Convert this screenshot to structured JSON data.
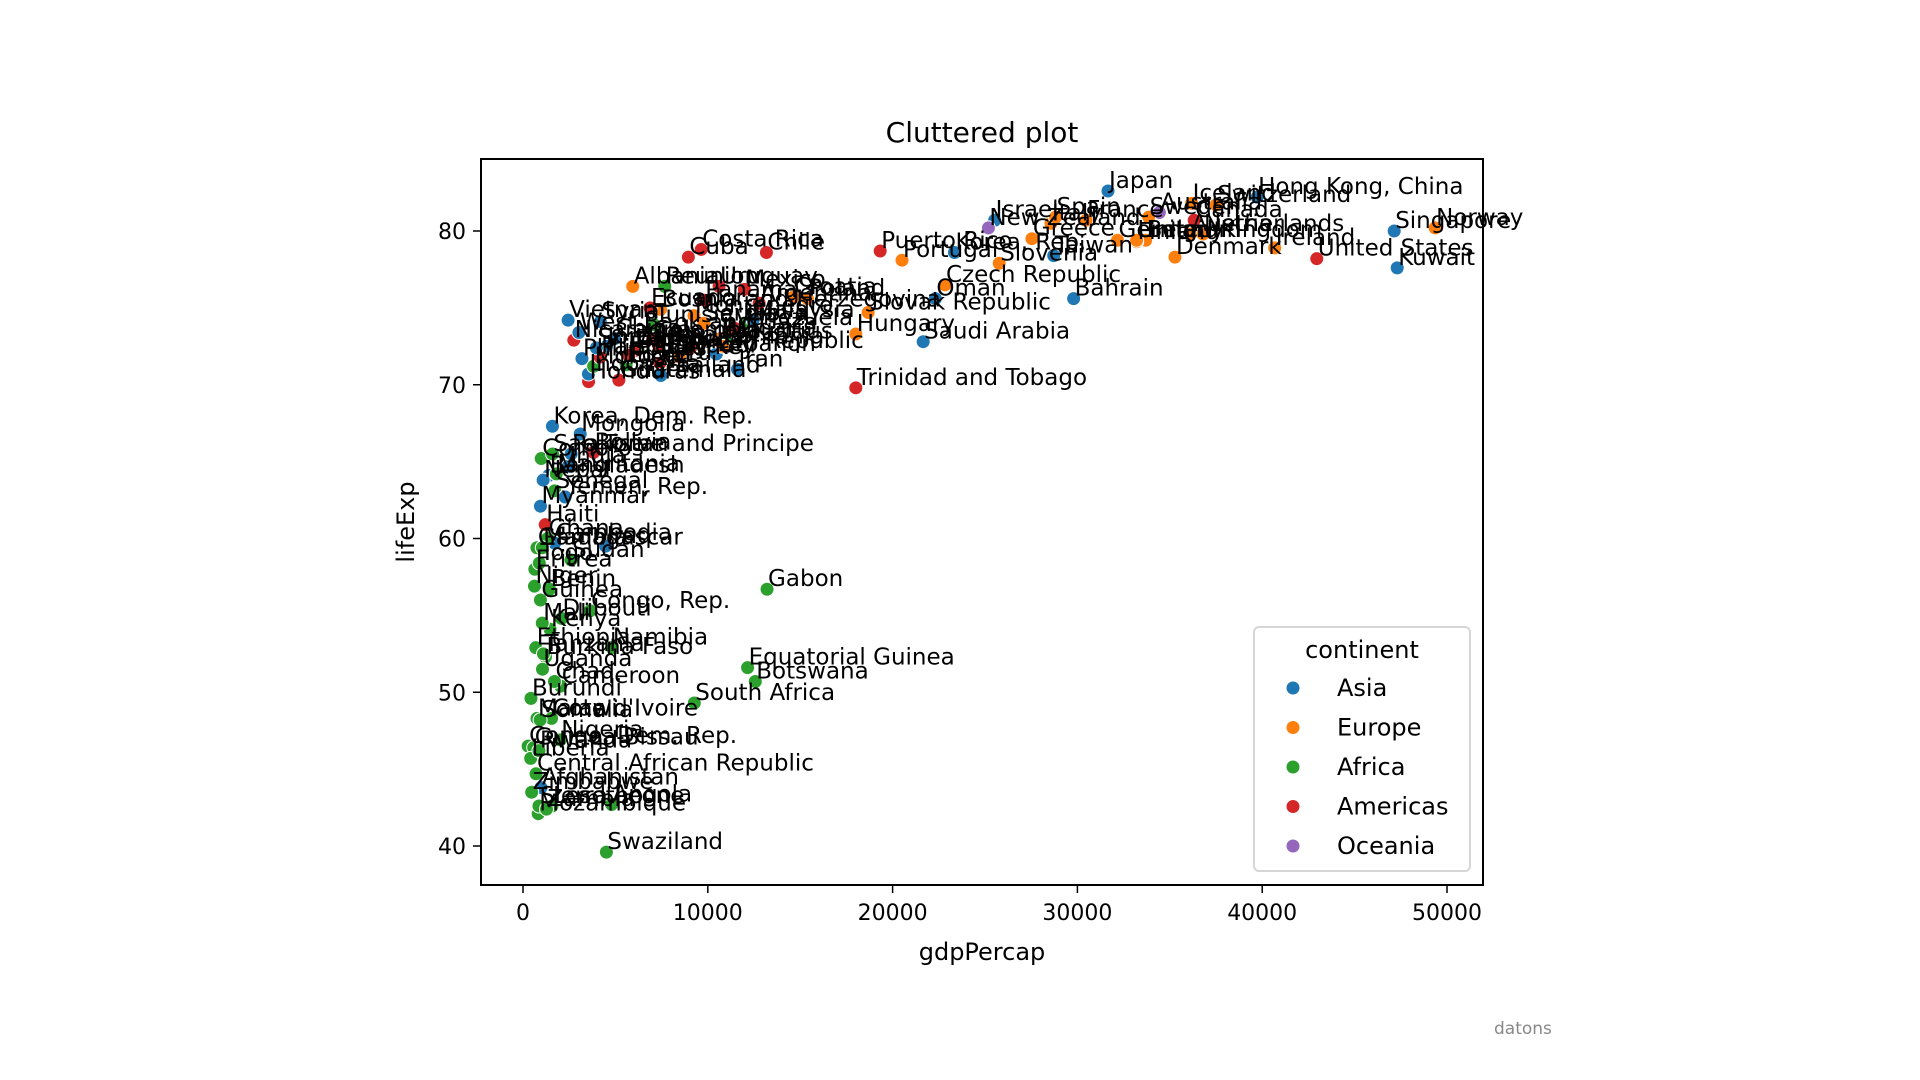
{
  "chart_data": {
    "type": "scatter",
    "title": "Cluttered plot",
    "xlabel": "gdpPercap",
    "ylabel": "lifeExp",
    "xlim": [
      -2300,
      52000
    ],
    "ylim": [
      37.5,
      84.8
    ],
    "xticks": [
      0,
      10000,
      20000,
      30000,
      40000,
      50000
    ],
    "yticks": [
      40,
      50,
      60,
      70,
      80
    ],
    "grid": false,
    "legend": {
      "title": "continent",
      "position": "lower right",
      "entries": [
        "Asia",
        "Europe",
        "Africa",
        "Americas",
        "Oceania"
      ]
    },
    "colors": {
      "Asia": "#1f77b4",
      "Europe": "#ff7f0e",
      "Africa": "#2ca02c",
      "Americas": "#d62728",
      "Oceania": "#9467bd"
    },
    "points": [
      {
        "c": "Afghanistan",
        "k": "Asia",
        "x": 975,
        "y": 43.8
      },
      {
        "c": "Albania",
        "k": "Europe",
        "x": 5937,
        "y": 76.4
      },
      {
        "c": "Algeria",
        "k": "Africa",
        "x": 6223,
        "y": 72.3
      },
      {
        "c": "Angola",
        "k": "Africa",
        "x": 4797,
        "y": 42.7
      },
      {
        "c": "Argentina",
        "k": "Americas",
        "x": 12779,
        "y": 75.3
      },
      {
        "c": "Australia",
        "k": "Oceania",
        "x": 34435,
        "y": 81.2
      },
      {
        "c": "Austria",
        "k": "Europe",
        "x": 36126,
        "y": 79.8
      },
      {
        "c": "Bahrain",
        "k": "Asia",
        "x": 29796,
        "y": 75.6
      },
      {
        "c": "Bangladesh",
        "k": "Asia",
        "x": 1391,
        "y": 64.1
      },
      {
        "c": "Belgium",
        "k": "Europe",
        "x": 33693,
        "y": 79.4
      },
      {
        "c": "Benin",
        "k": "Africa",
        "x": 1441,
        "y": 56.7
      },
      {
        "c": "Bolivia",
        "k": "Americas",
        "x": 3822,
        "y": 65.6
      },
      {
        "c": "Bosnia and Herzegovina",
        "k": "Europe",
        "x": 7446,
        "y": 74.9
      },
      {
        "c": "Botswana",
        "k": "Africa",
        "x": 12570,
        "y": 50.7
      },
      {
        "c": "Brazil",
        "k": "Americas",
        "x": 9066,
        "y": 72.4
      },
      {
        "c": "Bulgaria",
        "k": "Europe",
        "x": 10681,
        "y": 73.0
      },
      {
        "c": "Burkina Faso",
        "k": "Africa",
        "x": 1217,
        "y": 52.3
      },
      {
        "c": "Burundi",
        "k": "Africa",
        "x": 430,
        "y": 49.6
      },
      {
        "c": "Cambodia",
        "k": "Asia",
        "x": 1714,
        "y": 59.7
      },
      {
        "c": "Cameroon",
        "k": "Africa",
        "x": 2042,
        "y": 50.4
      },
      {
        "c": "Canada",
        "k": "Americas",
        "x": 36319,
        "y": 80.7
      },
      {
        "c": "Central African Republic",
        "k": "Africa",
        "x": 706,
        "y": 44.7
      },
      {
        "c": "Chad",
        "k": "Africa",
        "x": 1704,
        "y": 50.7
      },
      {
        "c": "Chile",
        "k": "Americas",
        "x": 13172,
        "y": 78.6
      },
      {
        "c": "China",
        "k": "Asia",
        "x": 4959,
        "y": 73.0
      },
      {
        "c": "Colombia",
        "k": "Americas",
        "x": 7007,
        "y": 72.9
      },
      {
        "c": "Comoros",
        "k": "Africa",
        "x": 986,
        "y": 65.2
      },
      {
        "c": "Congo, Dem. Rep.",
        "k": "Africa",
        "x": 278,
        "y": 46.5
      },
      {
        "c": "Congo, Rep.",
        "k": "Africa",
        "x": 3633,
        "y": 55.3
      },
      {
        "c": "Costa Rica",
        "k": "Americas",
        "x": 9645,
        "y": 78.8
      },
      {
        "c": "Cote d'Ivoire",
        "k": "Africa",
        "x": 1545,
        "y": 48.3
      },
      {
        "c": "Croatia",
        "k": "Europe",
        "x": 14619,
        "y": 75.7
      },
      {
        "c": "Cuba",
        "k": "Americas",
        "x": 8948,
        "y": 78.3
      },
      {
        "c": "Czech Republic",
        "k": "Europe",
        "x": 22833,
        "y": 76.5
      },
      {
        "c": "Denmark",
        "k": "Europe",
        "x": 35278,
        "y": 78.3
      },
      {
        "c": "Djibouti",
        "k": "Africa",
        "x": 2082,
        "y": 54.8
      },
      {
        "c": "Dominican Republic",
        "k": "Americas",
        "x": 6025,
        "y": 72.2
      },
      {
        "c": "Ecuador",
        "k": "Americas",
        "x": 6873,
        "y": 75.0
      },
      {
        "c": "Egypt",
        "k": "Africa",
        "x": 5581,
        "y": 71.3
      },
      {
        "c": "El Salvador",
        "k": "Americas",
        "x": 5728,
        "y": 71.9
      },
      {
        "c": "Equatorial Guinea",
        "k": "Africa",
        "x": 12154,
        "y": 51.6
      },
      {
        "c": "Eritrea",
        "k": "Africa",
        "x": 641,
        "y": 58.0
      },
      {
        "c": "Ethiopia",
        "k": "Africa",
        "x": 691,
        "y": 52.9
      },
      {
        "c": "Finland",
        "k": "Europe",
        "x": 33207,
        "y": 79.3
      },
      {
        "c": "France",
        "k": "Europe",
        "x": 30470,
        "y": 80.7
      },
      {
        "c": "Gabon",
        "k": "Africa",
        "x": 13206,
        "y": 56.7
      },
      {
        "c": "Gambia",
        "k": "Africa",
        "x": 753,
        "y": 59.4
      },
      {
        "c": "Germany",
        "k": "Europe",
        "x": 32170,
        "y": 79.4
      },
      {
        "c": "Ghana",
        "k": "Africa",
        "x": 1328,
        "y": 60.0
      },
      {
        "c": "Greece",
        "k": "Europe",
        "x": 27538,
        "y": 79.5
      },
      {
        "c": "Guatemala",
        "k": "Americas",
        "x": 5186,
        "y": 70.3
      },
      {
        "c": "Guinea",
        "k": "Africa",
        "x": 943,
        "y": 56.0
      },
      {
        "c": "Guinea-Bissau",
        "k": "Africa",
        "x": 579,
        "y": 46.4
      },
      {
        "c": "Haiti",
        "k": "Americas",
        "x": 1202,
        "y": 60.9
      },
      {
        "c": "Honduras",
        "k": "Americas",
        "x": 3548,
        "y": 70.2
      },
      {
        "c": "Hong Kong, China",
        "k": "Asia",
        "x": 39725,
        "y": 82.2
      },
      {
        "c": "Hungary",
        "k": "Europe",
        "x": 18009,
        "y": 73.3
      },
      {
        "c": "Iceland",
        "k": "Europe",
        "x": 36181,
        "y": 81.8
      },
      {
        "c": "India",
        "k": "Asia",
        "x": 2452,
        "y": 64.7
      },
      {
        "c": "Indonesia",
        "k": "Asia",
        "x": 3541,
        "y": 70.7
      },
      {
        "c": "Iran",
        "k": "Asia",
        "x": 11606,
        "y": 71.0
      },
      {
        "c": "Iraq",
        "k": "Asia",
        "x": 4471,
        "y": 59.5
      },
      {
        "c": "Ireland",
        "k": "Europe",
        "x": 40676,
        "y": 78.9
      },
      {
        "c": "Israel",
        "k": "Asia",
        "x": 25523,
        "y": 80.7
      },
      {
        "c": "Italy",
        "k": "Europe",
        "x": 28570,
        "y": 80.5
      },
      {
        "c": "Jamaica",
        "k": "Americas",
        "x": 7321,
        "y": 72.6
      },
      {
        "c": "Japan",
        "k": "Asia",
        "x": 31656,
        "y": 82.6
      },
      {
        "c": "Jordan",
        "k": "Asia",
        "x": 4519,
        "y": 72.5
      },
      {
        "c": "Kenya",
        "k": "Africa",
        "x": 1463,
        "y": 54.1
      },
      {
        "c": "Korea, Dem. Rep.",
        "k": "Asia",
        "x": 1593,
        "y": 67.3
      },
      {
        "c": "Korea, Rep.",
        "k": "Asia",
        "x": 23348,
        "y": 78.6
      },
      {
        "c": "Kuwait",
        "k": "Asia",
        "x": 47307,
        "y": 77.6
      },
      {
        "c": "Lebanon",
        "k": "Asia",
        "x": 10461,
        "y": 72.0
      },
      {
        "c": "Lesotho",
        "k": "Africa",
        "x": 1569,
        "y": 42.6
      },
      {
        "c": "Liberia",
        "k": "Africa",
        "x": 415,
        "y": 45.7
      },
      {
        "c": "Libya",
        "k": "Africa",
        "x": 12057,
        "y": 74.0
      },
      {
        "c": "Madagascar",
        "k": "Africa",
        "x": 1045,
        "y": 59.4
      },
      {
        "c": "Malawi",
        "k": "Africa",
        "x": 759,
        "y": 48.3
      },
      {
        "c": "Malaysia",
        "k": "Asia",
        "x": 12452,
        "y": 74.2
      },
      {
        "c": "Mali",
        "k": "Africa",
        "x": 1043,
        "y": 54.5
      },
      {
        "c": "Mauritania",
        "k": "Africa",
        "x": 1803,
        "y": 64.2
      },
      {
        "c": "Mauritius",
        "k": "Africa",
        "x": 10957,
        "y": 72.8
      },
      {
        "c": "Mexico",
        "k": "Americas",
        "x": 11978,
        "y": 76.2
      },
      {
        "c": "Mongolia",
        "k": "Asia",
        "x": 3096,
        "y": 66.8
      },
      {
        "c": "Montenegro",
        "k": "Europe",
        "x": 9254,
        "y": 74.5
      },
      {
        "c": "Morocco",
        "k": "Africa",
        "x": 3820,
        "y": 71.2
      },
      {
        "c": "Mozambique",
        "k": "Africa",
        "x": 824,
        "y": 42.1
      },
      {
        "c": "Myanmar",
        "k": "Asia",
        "x": 944,
        "y": 62.1
      },
      {
        "c": "Namibia",
        "k": "Africa",
        "x": 4811,
        "y": 52.9
      },
      {
        "c": "Nepal",
        "k": "Asia",
        "x": 1091,
        "y": 63.8
      },
      {
        "c": "Netherlands",
        "k": "Europe",
        "x": 36798,
        "y": 79.8
      },
      {
        "c": "New Zealand",
        "k": "Oceania",
        "x": 25185,
        "y": 80.2
      },
      {
        "c": "Nicaragua",
        "k": "Americas",
        "x": 2749,
        "y": 72.9
      },
      {
        "c": "Niger",
        "k": "Africa",
        "x": 620,
        "y": 56.9
      },
      {
        "c": "Nigeria",
        "k": "Africa",
        "x": 2014,
        "y": 46.9
      },
      {
        "c": "Norway",
        "k": "Europe",
        "x": 49357,
        "y": 80.2
      },
      {
        "c": "Oman",
        "k": "Asia",
        "x": 22316,
        "y": 75.6
      },
      {
        "c": "Pakistan",
        "k": "Asia",
        "x": 2606,
        "y": 65.5
      },
      {
        "c": "Panama",
        "k": "Americas",
        "x": 9809,
        "y": 75.5
      },
      {
        "c": "Paraguay",
        "k": "Americas",
        "x": 4173,
        "y": 71.8
      },
      {
        "c": "Peru",
        "k": "Americas",
        "x": 7409,
        "y": 71.4
      },
      {
        "c": "Philippines",
        "k": "Asia",
        "x": 3190,
        "y": 71.7
      },
      {
        "c": "Poland",
        "k": "Europe",
        "x": 15390,
        "y": 75.6
      },
      {
        "c": "Portugal",
        "k": "Europe",
        "x": 20510,
        "y": 78.1
      },
      {
        "c": "Puerto Rico",
        "k": "Americas",
        "x": 19329,
        "y": 78.7
      },
      {
        "c": "Reunion",
        "k": "Africa",
        "x": 7670,
        "y": 76.4
      },
      {
        "c": "Romania",
        "k": "Europe",
        "x": 10808,
        "y": 72.5
      },
      {
        "c": "Rwanda",
        "k": "Africa",
        "x": 863,
        "y": 46.2
      },
      {
        "c": "Sao Tome and Principe",
        "k": "Africa",
        "x": 1598,
        "y": 65.5
      },
      {
        "c": "Saudi Arabia",
        "k": "Asia",
        "x": 21655,
        "y": 72.8
      },
      {
        "c": "Senegal",
        "k": "Africa",
        "x": 1712,
        "y": 63.1
      },
      {
        "c": "Serbia",
        "k": "Europe",
        "x": 9787,
        "y": 74.0
      },
      {
        "c": "Sierra Leone",
        "k": "Africa",
        "x": 863,
        "y": 42.6
      },
      {
        "c": "Singapore",
        "k": "Asia",
        "x": 47143,
        "y": 80.0
      },
      {
        "c": "Slovak Republic",
        "k": "Europe",
        "x": 18678,
        "y": 74.7
      },
      {
        "c": "Slovenia",
        "k": "Europe",
        "x": 25768,
        "y": 77.9
      },
      {
        "c": "Somalia",
        "k": "Africa",
        "x": 926,
        "y": 48.2
      },
      {
        "c": "South Africa",
        "k": "Africa",
        "x": 9270,
        "y": 49.3
      },
      {
        "c": "Spain",
        "k": "Europe",
        "x": 28821,
        "y": 80.9
      },
      {
        "c": "Sri Lanka",
        "k": "Asia",
        "x": 3970,
        "y": 72.4
      },
      {
        "c": "Sudan",
        "k": "Africa",
        "x": 2602,
        "y": 58.6
      },
      {
        "c": "Swaziland",
        "k": "Africa",
        "x": 4513,
        "y": 39.6
      },
      {
        "c": "Sweden",
        "k": "Europe",
        "x": 33860,
        "y": 80.9
      },
      {
        "c": "Switzerland",
        "k": "Europe",
        "x": 37506,
        "y": 81.7
      },
      {
        "c": "Syria",
        "k": "Asia",
        "x": 4185,
        "y": 74.1
      },
      {
        "c": "Taiwan",
        "k": "Asia",
        "x": 28718,
        "y": 78.4
      },
      {
        "c": "Tanzania",
        "k": "Africa",
        "x": 1107,
        "y": 52.5
      },
      {
        "c": "Thailand",
        "k": "Asia",
        "x": 7458,
        "y": 70.6
      },
      {
        "c": "Togo",
        "k": "Africa",
        "x": 883,
        "y": 58.4
      },
      {
        "c": "Trinidad and Tobago",
        "k": "Americas",
        "x": 18009,
        "y": 69.8
      },
      {
        "c": "Tunisia",
        "k": "Africa",
        "x": 7093,
        "y": 73.9
      },
      {
        "c": "Turkey",
        "k": "Europe",
        "x": 8458,
        "y": 71.8
      },
      {
        "c": "Uganda",
        "k": "Africa",
        "x": 1056,
        "y": 51.5
      },
      {
        "c": "United Kingdom",
        "k": "Europe",
        "x": 33203,
        "y": 79.4
      },
      {
        "c": "United States",
        "k": "Americas",
        "x": 42952,
        "y": 78.2
      },
      {
        "c": "Uruguay",
        "k": "Americas",
        "x": 10611,
        "y": 76.4
      },
      {
        "c": "Venezuela",
        "k": "Americas",
        "x": 11416,
        "y": 73.7
      },
      {
        "c": "Vietnam",
        "k": "Asia",
        "x": 2442,
        "y": 74.2
      },
      {
        "c": "West Bank and Gaza",
        "k": "Asia",
        "x": 3025,
        "y": 73.4
      },
      {
        "c": "Yemen, Rep.",
        "k": "Asia",
        "x": 2281,
        "y": 62.7
      },
      {
        "c": "Zambia",
        "k": "Africa",
        "x": 1271,
        "y": 42.4
      },
      {
        "c": "Zimbabwe",
        "k": "Africa",
        "x": 470,
        "y": 43.5
      }
    ]
  },
  "watermark": "datons"
}
